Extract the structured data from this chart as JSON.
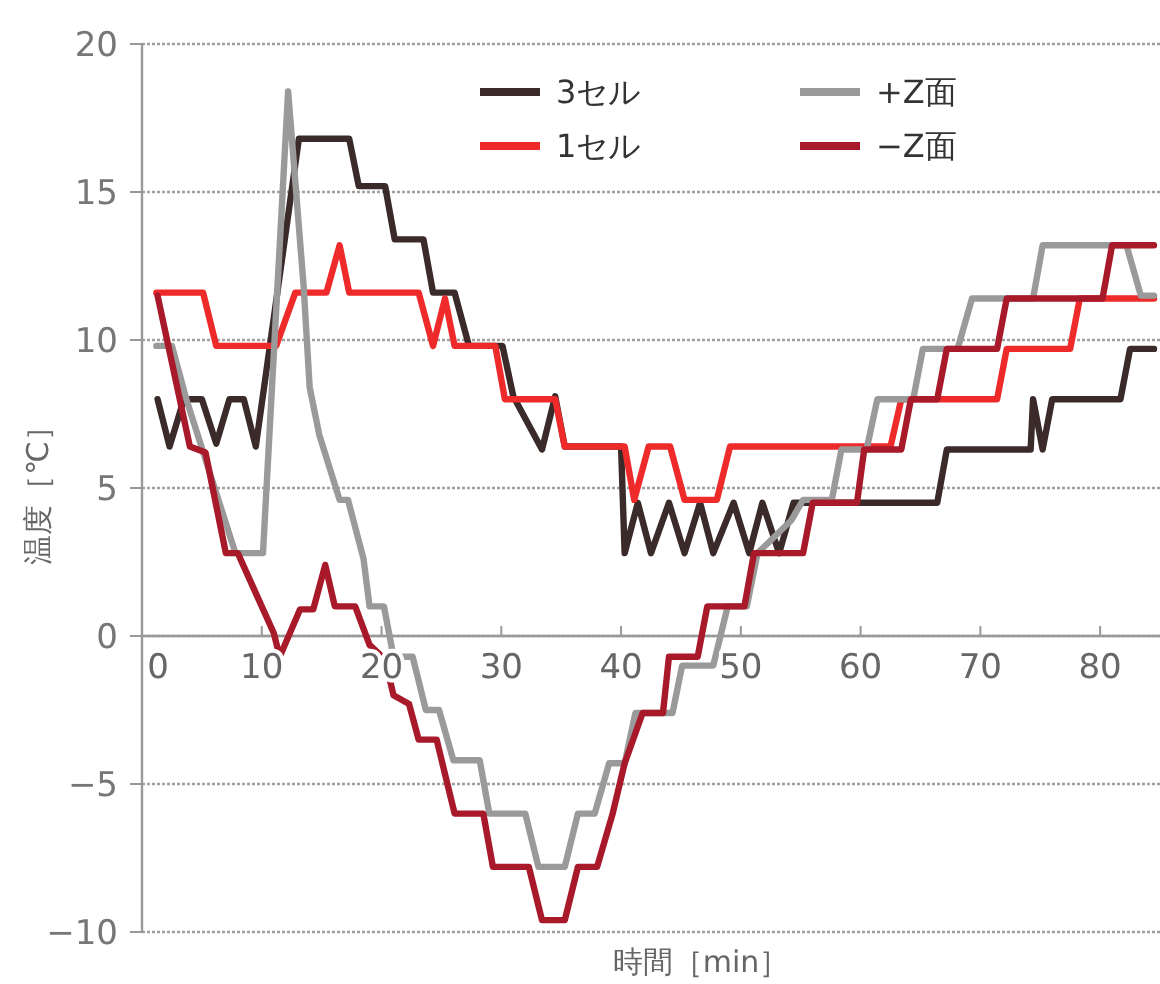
{
  "chart_data": {
    "type": "line",
    "xlabel": "時間［min］",
    "ylabel": "温度［℃］",
    "xlim": [
      0,
      85
    ],
    "ylim": [
      -10,
      20
    ],
    "xticks": [
      0,
      10,
      20,
      30,
      40,
      50,
      60,
      70,
      80
    ],
    "yticks": [
      {
        "value": -10,
        "label": "−10"
      },
      {
        "value": -5,
        "label": "−5"
      },
      0,
      5,
      10,
      15,
      20
    ],
    "grid": "y",
    "legend": "top",
    "line_style": "solid",
    "marker": "none",
    "series": [
      {
        "name": "3セル",
        "color": "#3a2a2a",
        "x": [
          1.3,
          2.3,
          3.5,
          5,
          6.2,
          7.3,
          8.5,
          9.5,
          13.1,
          17.3,
          18.1,
          20.3,
          21.1,
          23.5,
          24.3,
          26.1,
          27.3,
          30.1,
          31,
          33.4,
          34.5,
          35.3,
          40,
          40.3,
          41.4,
          42.5,
          44,
          45.3,
          46.6,
          47.7,
          49.4,
          50.7,
          51.8,
          53.2,
          54.4,
          66.4,
          67.2,
          74.2,
          74.4,
          75.2,
          76,
          81.7,
          82.5,
          84.5
        ],
        "values": [
          8,
          6.4,
          8,
          8,
          6.5,
          8,
          8,
          6.4,
          16.8,
          16.8,
          15.2,
          15.2,
          13.4,
          13.4,
          11.6,
          11.6,
          9.8,
          9.8,
          8.1,
          6.3,
          8.1,
          6.4,
          6.4,
          2.8,
          4.5,
          2.8,
          4.5,
          2.8,
          4.5,
          2.8,
          4.5,
          2.8,
          4.5,
          2.8,
          4.5,
          4.5,
          6.3,
          6.3,
          8,
          6.3,
          8,
          8,
          9.7,
          9.7
        ]
      },
      {
        "name": "1セル",
        "color": "#ee2a2a",
        "x": [
          1.2,
          5.1,
          6.2,
          11.2,
          12.8,
          15.4,
          16.5,
          17.3,
          23.1,
          24.3,
          25.3,
          26.1,
          29.5,
          30.3,
          34.5,
          35.3,
          40.3,
          41.1,
          42.3,
          44.1,
          45.3,
          48,
          49.1,
          62.5,
          63.4,
          71.4,
          72.2,
          77.5,
          78.3,
          84.5
        ],
        "values": [
          11.6,
          11.6,
          9.8,
          9.8,
          11.6,
          11.6,
          13.2,
          11.6,
          11.6,
          9.8,
          11.4,
          9.8,
          9.8,
          8,
          8,
          6.4,
          6.4,
          4.6,
          6.4,
          6.4,
          4.6,
          4.6,
          6.4,
          6.4,
          8,
          8,
          9.7,
          9.7,
          11.4,
          11.4
        ]
      },
      {
        "name": "+Z面",
        "color": "#9a9a9a",
        "x": [
          1.2,
          2.5,
          3.7,
          7.8,
          10.1,
          12.2,
          13.5,
          14,
          14.8,
          16.5,
          17.2,
          18.5,
          19,
          20.2,
          21,
          22.6,
          23.7,
          24.8,
          26,
          28.2,
          29,
          32,
          33.1,
          35.3,
          36.4,
          37.8,
          39,
          40.3,
          41.2,
          44.3,
          45.1,
          47.7,
          48.9,
          50.5,
          51.4,
          54.2,
          55.2,
          57.6,
          58.4,
          60.5,
          61.4,
          64.4,
          65.2,
          68.1,
          69.3,
          74.4,
          75.2,
          82.2,
          83.4,
          84.5
        ],
        "values": [
          9.8,
          9.8,
          8,
          2.8,
          2.8,
          18.4,
          11.8,
          8.4,
          6.8,
          4.6,
          4.6,
          2.6,
          1,
          1,
          -0.7,
          -0.7,
          -2.5,
          -2.5,
          -4.2,
          -4.2,
          -6,
          -6,
          -7.8,
          -7.8,
          -6,
          -6,
          -4.3,
          -4.3,
          -2.6,
          -2.6,
          -1,
          -1,
          1,
          1,
          2.8,
          3.9,
          4.6,
          4.6,
          6.3,
          6.3,
          8,
          8,
          9.7,
          9.7,
          11.4,
          11.4,
          13.2,
          13.2,
          11.5,
          11.5
        ]
      },
      {
        "name": "−Z面",
        "color": "#a8192a",
        "x": [
          1.3,
          4,
          5.3,
          7,
          8,
          11,
          11.5,
          13.2,
          14.3,
          15.3,
          16.1,
          17.8,
          19,
          20.3,
          21,
          22.3,
          23.1,
          24.6,
          26.1,
          28.5,
          29.3,
          32.3,
          33.4,
          35.3,
          36.4,
          38,
          39.3,
          40.3,
          41.8,
          43.5,
          44,
          46.4,
          47.2,
          50.3,
          51.1,
          55.2,
          56,
          59.7,
          60.3,
          63.4,
          64.2,
          66.4,
          67.2,
          71.4,
          72.2,
          80.2,
          81,
          84.5
        ],
        "values": [
          11.5,
          6.4,
          6.2,
          2.8,
          2.8,
          0.1,
          -0.7,
          0.9,
          0.9,
          2.4,
          1,
          1,
          -0.3,
          -0.8,
          -2,
          -2.3,
          -3.5,
          -3.5,
          -6,
          -6,
          -7.8,
          -7.8,
          -9.6,
          -9.6,
          -7.8,
          -7.8,
          -6,
          -4.3,
          -2.6,
          -2.6,
          -0.7,
          -0.7,
          1,
          1,
          2.8,
          2.8,
          4.5,
          4.5,
          6.3,
          6.3,
          8,
          8,
          9.7,
          9.7,
          11.4,
          11.4,
          13.2,
          13.2
        ]
      }
    ]
  }
}
